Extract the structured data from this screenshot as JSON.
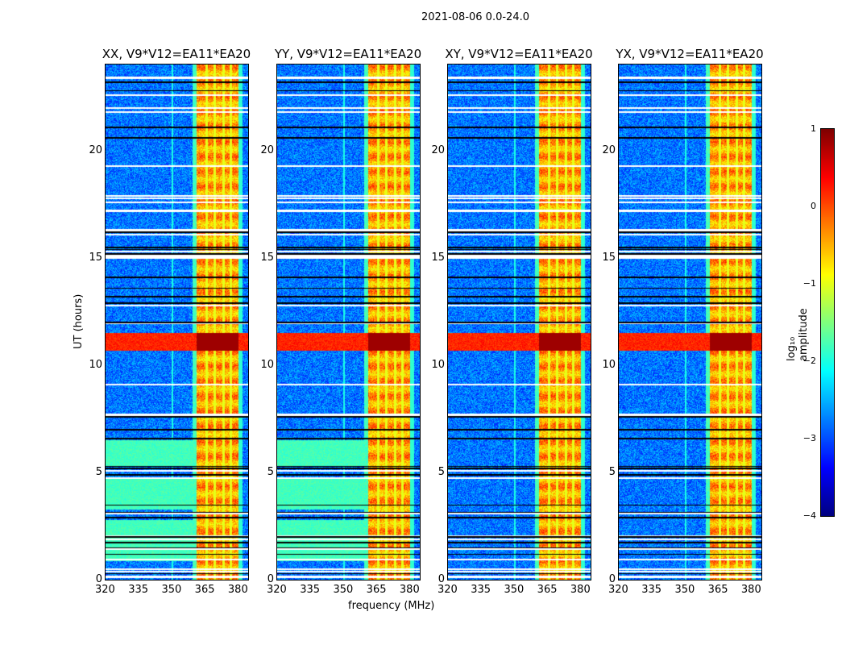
{
  "chart_data": {
    "type": "heatmap",
    "title": "2021-08-06 0.0-24.0",
    "xlabel": "frequency (MHz)",
    "ylabel": "UT (hours)",
    "xlim": [
      320,
      384.4
    ],
    "ylim": [
      0,
      24
    ],
    "xticks": [
      "320",
      "335",
      "350",
      "365",
      "380"
    ],
    "yticks": [
      "0",
      "5",
      "10",
      "15",
      "20"
    ],
    "panels": [
      {
        "title": "XX, V9*V12=EA11*EA20",
        "green_low_band": true
      },
      {
        "title": "YY, V9*V12=EA11*EA20",
        "green_low_band": true
      },
      {
        "title": "XY, V9*V12=EA11*EA20",
        "green_low_band": false
      },
      {
        "title": "YX, V9*V12=EA11*EA20",
        "green_low_band": false
      }
    ],
    "features": {
      "rfi_band_mhz": [
        361,
        380
      ],
      "strong_rfi_hours": [
        10.7,
        11.5
      ],
      "background_log_amp": -2.8
    },
    "colorbar": {
      "label": "log₁₀ amplitude",
      "range": [
        -4,
        1
      ],
      "ticks": [
        "1",
        "0",
        "−1",
        "−2",
        "−3",
        "−4"
      ],
      "colormap": "jet"
    }
  }
}
